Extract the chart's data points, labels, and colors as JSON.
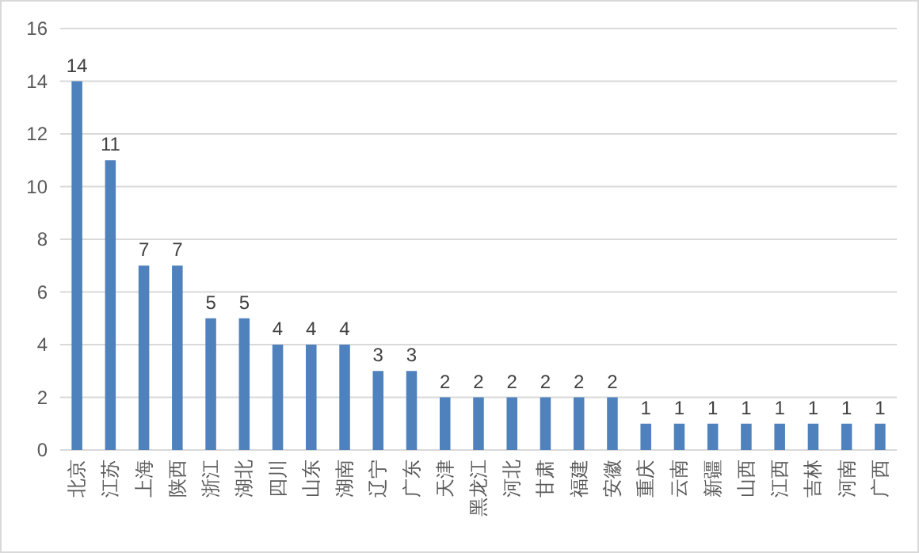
{
  "chart_data": {
    "type": "bar",
    "categories": [
      "北京",
      "江苏",
      "上海",
      "陕西",
      "浙江",
      "湖北",
      "四川",
      "山东",
      "湖南",
      "辽宁",
      "广东",
      "天津",
      "黑龙江",
      "河北",
      "甘肃",
      "福建",
      "安徽",
      "重庆",
      "云南",
      "新疆",
      "山西",
      "江西",
      "吉林",
      "河南",
      "广西"
    ],
    "values": [
      14,
      11,
      7,
      7,
      5,
      5,
      4,
      4,
      4,
      3,
      3,
      2,
      2,
      2,
      2,
      2,
      2,
      1,
      1,
      1,
      1,
      1,
      1,
      1,
      1
    ],
    "color": "#4f81bd",
    "ylim": [
      0,
      16
    ],
    "yticks": [
      0,
      2,
      4,
      6,
      8,
      10,
      12,
      14,
      16
    ],
    "grid": "y",
    "data_labels": true
  }
}
